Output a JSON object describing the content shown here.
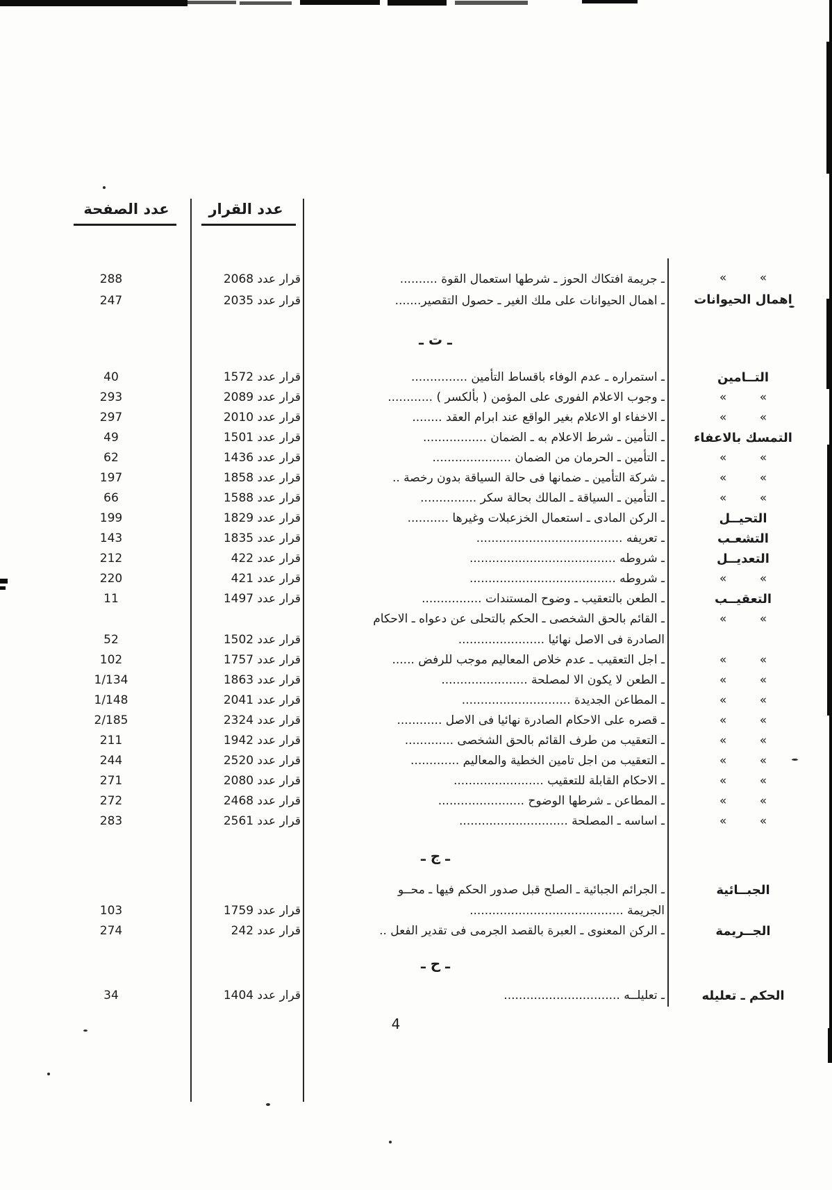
{
  "folio": "4",
  "table": {
    "headers": {
      "page_col": "عدد الصفحة",
      "decision_col": "عدد القرار"
    },
    "rows": [
      {
        "type": "entry",
        "subject": "» »",
        "ditto": true,
        "lines": [
          "ـ جريمة افتكاك الحوز ـ شرطها استعمال القوة .........."
        ],
        "decision": "قرار عدد 2068",
        "page": "288"
      },
      {
        "type": "entry",
        "subject": "اهمال الحيوانات",
        "lines": [
          "ـ اهمال الحيوانات على ملك الغير ـ حصول التقصير......."
        ],
        "decision": "قرار عدد 2035",
        "page": "247"
      },
      {
        "type": "section",
        "id": "t",
        "label": "ـ ت ـ"
      },
      {
        "type": "entry",
        "subject": "التــامين",
        "lines": [
          "ـ استمراره ـ عدم الوفاء باقساط التأمين ..............."
        ],
        "decision": "قرار عدد 1572",
        "page": "40"
      },
      {
        "type": "entry",
        "subject": "» »",
        "ditto": true,
        "lines": [
          "ـ وجوب الاعلام الفورى على المؤمن ( بألكسر ) ............"
        ],
        "decision": "قرار عدد 2089",
        "page": "293"
      },
      {
        "type": "entry",
        "subject": "» »",
        "ditto": true,
        "lines": [
          "ـ الاخفاء او الاعلام بغير الواقع عند ابرام العقد ........"
        ],
        "decision": "قرار عدد 2010",
        "page": "297"
      },
      {
        "type": "entry",
        "subject": "التمسك بالاعفاء",
        "lines": [
          "ـ التأمين ـ شرط الاعلام به ـ الضمان ................."
        ],
        "decision": "قرار عدد 1501",
        "page": "49"
      },
      {
        "type": "entry",
        "subject": "» »",
        "ditto": true,
        "lines": [
          "ـ التأمين ـ الحرمان من الضمان ....................."
        ],
        "decision": "قرار عدد 1436",
        "page": "62"
      },
      {
        "type": "entry",
        "subject": "» »",
        "ditto": true,
        "lines": [
          "ـ شركة التأمين ـ ضمانها فى حالة السياقة بدون رخصة .."
        ],
        "decision": "قرار عدد 1858",
        "page": "197"
      },
      {
        "type": "entry",
        "subject": "» »",
        "ditto": true,
        "lines": [
          "ـ التأمين ـ السياقة ـ المالك بحالة سكر ..............."
        ],
        "decision": "قرار عدد 1588",
        "page": "66"
      },
      {
        "type": "entry",
        "subject": "التحيــل",
        "lines": [
          "ـ الركن المادى ـ استعمال الخزعبلات وغيرها ..........."
        ],
        "decision": "قرار عدد 1829",
        "page": "199"
      },
      {
        "type": "entry",
        "subject": "التشعـب",
        "lines": [
          "ـ تعريفه ......................................."
        ],
        "decision": "قرار عدد 1835",
        "page": "143"
      },
      {
        "type": "entry",
        "subject": "التعديــل",
        "lines": [
          "ـ شروطه ......................................."
        ],
        "decision": "قرار عدد 422",
        "page": "212"
      },
      {
        "type": "entry",
        "subject": "» »",
        "ditto": true,
        "lines": [
          "ـ شروطه ......................................."
        ],
        "decision": "قرار عدد 421",
        "page": "220"
      },
      {
        "type": "entry",
        "subject": "التعقيــب",
        "lines": [
          "ـ الطعن بالتعقيب ـ وضوح المستندات ................"
        ],
        "decision": "قرار عدد 1497",
        "page": "11"
      },
      {
        "type": "entry",
        "subject": "» »",
        "ditto": true,
        "lines": [
          "ـ القائم بالحق الشخصى ـ الحكم بالتحلى عن دعواه ـ الاحكام",
          "الصادرة فى الاصل نهائيا ......................."
        ],
        "decision": "قرار عدد 1502",
        "page": "52"
      },
      {
        "type": "entry",
        "subject": "» »",
        "ditto": true,
        "lines": [
          "ـ اجل التعقيب ـ عدم خلاص المعاليم موجب للرفض ......"
        ],
        "decision": "قرار عدد 1757",
        "page": "102"
      },
      {
        "type": "entry",
        "subject": "» »",
        "ditto": true,
        "lines": [
          "ـ الطعن لا يكون الا لمصلحة ......................."
        ],
        "decision": "قرار عدد 1863",
        "page": "1/134"
      },
      {
        "type": "entry",
        "subject": "» »",
        "ditto": true,
        "lines": [
          "ـ المطاعن الجديدة ............................."
        ],
        "decision": "قرار عدد 2041",
        "page": "1/148"
      },
      {
        "type": "entry",
        "subject": "» »",
        "ditto": true,
        "lines": [
          "ـ قصره على الاحكام الصادرة نهائيا فى الاصل ............"
        ],
        "decision": "قرار عدد 2324",
        "page": "2/185"
      },
      {
        "type": "entry",
        "subject": "» »",
        "ditto": true,
        "lines": [
          "ـ التعقيب من طرف القائم بالحق الشخصى ............."
        ],
        "decision": "قرار عدد 1942",
        "page": "211"
      },
      {
        "type": "entry",
        "subject": "» »",
        "ditto": true,
        "lines": [
          "ـ التعقيب من اجل تامين الخطية والمعاليم ............."
        ],
        "decision": "قرار عدد 2520",
        "page": "244"
      },
      {
        "type": "entry",
        "subject": "» »",
        "ditto": true,
        "lines": [
          "ـ الاحكام القابلة للتعقيب ........................"
        ],
        "decision": "قرار عدد 2080",
        "page": "271"
      },
      {
        "type": "entry",
        "subject": "» »",
        "ditto": true,
        "lines": [
          "ـ المطاعن ـ شرطها الوضوح ......................."
        ],
        "decision": "قرار عدد 2468",
        "page": "272"
      },
      {
        "type": "entry",
        "subject": "» »",
        "ditto": true,
        "lines": [
          "ـ اساسه ـ المصلحة ............................."
        ],
        "decision": "قرار عدد 2561",
        "page": "283"
      },
      {
        "type": "section",
        "id": "j",
        "label": "ـ ج ـ"
      },
      {
        "type": "entry",
        "subject": "الجبــائية",
        "lines": [
          "ـ الجرائم الجبائية ـ الصلح قبل صدور الحكم فيها ـ محــو",
          "الجريمة ........................................."
        ],
        "decision": "قرار عدد 1759",
        "page": "103"
      },
      {
        "type": "entry",
        "subject": "الجــريمة",
        "lines": [
          "ـ الركن المعنوى ـ العبرة بالقصد الجرمى فى تقدير الفعل .."
        ],
        "decision": "قرار عدد 242",
        "page": "274"
      },
      {
        "type": "section",
        "id": "h",
        "label": "ـ ح ـ"
      },
      {
        "type": "entry",
        "subject": "الحكم ـ تعليله",
        "lines": [
          "ـ تعليلــه ..............................."
        ],
        "decision": "قرار عدد 1404",
        "page": "34"
      }
    ]
  }
}
